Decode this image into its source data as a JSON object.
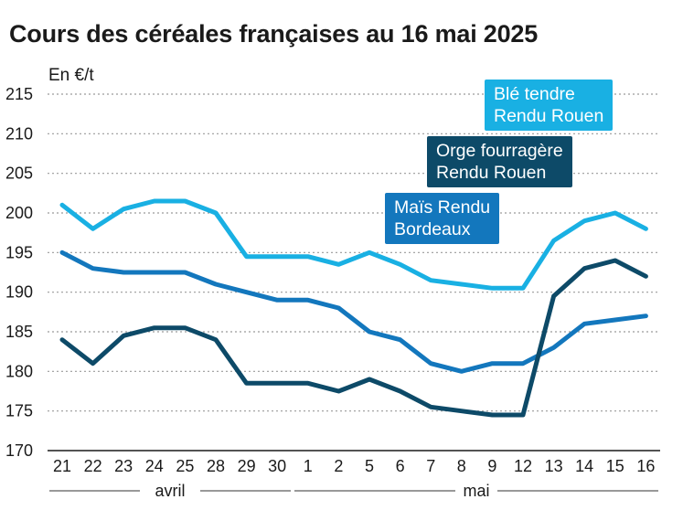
{
  "chart_data": {
    "type": "line",
    "title": "Cours des céréales françaises au 16 mai 2025",
    "ylabel": "En €/t",
    "ylim": [
      170,
      215
    ],
    "yticks": [
      170,
      175,
      180,
      185,
      190,
      195,
      200,
      205,
      210,
      215
    ],
    "categories": [
      "21",
      "22",
      "23",
      "24",
      "25",
      "28",
      "29",
      "30",
      "1",
      "2",
      "5",
      "6",
      "7",
      "8",
      "9",
      "12",
      "13",
      "14",
      "15",
      "16"
    ],
    "months": [
      {
        "label": "avril",
        "from": 0,
        "to": 7
      },
      {
        "label": "mai",
        "from": 8,
        "to": 19
      }
    ],
    "series": [
      {
        "name": "Blé tendre Rendu Rouen",
        "line1": "Blé tendre",
        "line2": "Rendu Rouen",
        "color": "#19b0e3",
        "values": [
          201,
          198,
          200.5,
          201.5,
          201.5,
          200,
          194.5,
          194.5,
          194.5,
          193.5,
          195,
          193.5,
          191.5,
          191,
          190.5,
          190.5,
          196.5,
          199,
          200,
          198
        ]
      },
      {
        "name": "Orge fourragère Rendu Rouen",
        "line1": "Orge fourragère",
        "line2": "Rendu Rouen",
        "color": "#0d4a68",
        "values": [
          184,
          181,
          184.5,
          185.5,
          185.5,
          184,
          178.5,
          178.5,
          178.5,
          177.5,
          179,
          177.5,
          175.5,
          175,
          174.5,
          174.5,
          189.5,
          193,
          194,
          192
        ]
      },
      {
        "name": "Maïs Rendu Bordeaux",
        "line1": "Maïs Rendu",
        "line2": "Bordeaux",
        "color": "#1377bd",
        "values": [
          195,
          193,
          192.5,
          192.5,
          192.5,
          191,
          190,
          189,
          189,
          188,
          185,
          184,
          181,
          180,
          181,
          181,
          183,
          186,
          186.5,
          187
        ]
      }
    ]
  }
}
